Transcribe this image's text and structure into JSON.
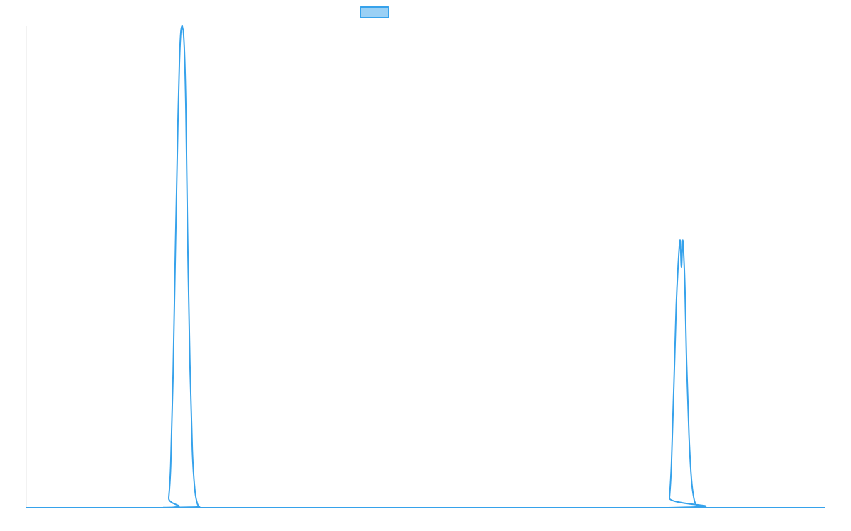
{
  "chart_data": {
    "type": "line",
    "title": "",
    "xlabel": "",
    "ylabel": "",
    "legend": {
      "placement": "top-center",
      "label": ""
    },
    "grid": false,
    "xlim": [
      0,
      1
    ],
    "ylim": [
      0,
      1
    ],
    "series": [
      {
        "color": "#36a2eb",
        "legend_fill": "#9ad0f5",
        "x": [
          0,
          0.177,
          0.1785,
          0.181,
          0.184,
          0.187,
          0.19,
          0.192,
          0.1935,
          0.195,
          0.196,
          0.197,
          0.1985,
          0.2,
          0.202,
          0.205,
          0.208,
          0.211,
          0.214,
          0.217,
          0.219,
          0.804,
          0.8055,
          0.808,
          0.811,
          0.814,
          0.817,
          0.819,
          0.8205,
          0.822,
          0.8235,
          0.825,
          0.827,
          0.83,
          0.833,
          0.836,
          0.839,
          0.842,
          0.844,
          1
        ],
        "y": [
          0,
          0,
          0.02,
          0.09,
          0.28,
          0.55,
          0.8,
          0.93,
          0.985,
          1.0,
          0.995,
          0.985,
          0.93,
          0.82,
          0.58,
          0.3,
          0.12,
          0.04,
          0.01,
          0.002,
          0,
          0,
          0.02,
          0.09,
          0.25,
          0.42,
          0.52,
          0.555,
          0.5,
          0.555,
          0.52,
          0.45,
          0.3,
          0.15,
          0.06,
          0.02,
          0.005,
          0.001,
          0,
          0
        ]
      }
    ]
  }
}
